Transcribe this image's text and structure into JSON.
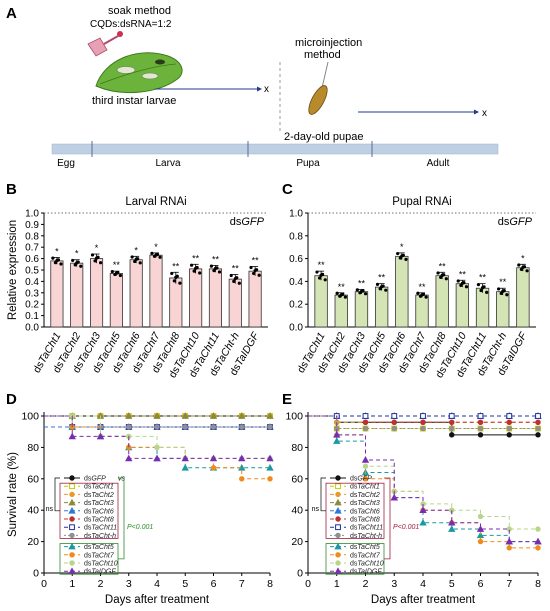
{
  "panels": {
    "A": {
      "label": "A",
      "soak_title": "soak method",
      "soak_ratio": "CQDs:dsRNA=1:2",
      "soak_subject": "third instar larvae",
      "micro_title_1": "microinjection",
      "micro_title_2": "method",
      "micro_subject": "2-day-old pupae",
      "x_mark": "x",
      "stages": [
        "Egg",
        "Larva",
        "Pupa",
        "Adult"
      ]
    },
    "B": {
      "label": "B"
    },
    "C": {
      "label": "C"
    },
    "D": {
      "label": "D"
    },
    "E": {
      "label": "E"
    }
  },
  "colors": {
    "larval_bar": "#f8d4d4",
    "pupal_bar": "#d4e4b4",
    "timeline": "#bfd0e4",
    "legend_red": "#a02040",
    "legend_green": "#2e8b2e"
  },
  "chart_data": [
    {
      "panel": "B",
      "type": "bar",
      "title": "Larval RNAi",
      "control_label_prefix": "ds",
      "control_label_italic": "GFP",
      "ylabel": "Relative expression",
      "ylim": [
        0,
        1.0
      ],
      "yticks": [
        "0.0",
        "0.1",
        "0.2",
        "0.3",
        "0.4",
        "0.5",
        "0.6",
        "0.7",
        "0.8",
        "0.9",
        "1.0"
      ],
      "categories": [
        "TaCht1",
        "TaCht2",
        "TaCht3",
        "TaCht5",
        "TaCht6",
        "TaCht7",
        "TaCht8",
        "TaCht10",
        "TaCht11",
        "TaCht-h",
        "TaIDGF"
      ],
      "category_prefix": "ds",
      "values": [
        0.58,
        0.56,
        0.6,
        0.47,
        0.59,
        0.63,
        0.43,
        0.51,
        0.51,
        0.42,
        0.49
      ],
      "errors": [
        0.03,
        0.03,
        0.04,
        0.02,
        0.03,
        0.02,
        0.05,
        0.04,
        0.03,
        0.04,
        0.04
      ],
      "significance": [
        "*",
        "*",
        "*",
        "**",
        "*",
        "*",
        "**",
        "**",
        "**",
        "**",
        "**"
      ],
      "reference_line": 1.0
    },
    {
      "panel": "C",
      "type": "bar",
      "title": "Pupal RNAi",
      "control_label_prefix": "ds",
      "control_label_italic": "GFP",
      "ylim": [
        0,
        1.0
      ],
      "yticks": [
        "0.0",
        "0.2",
        "0.4",
        "0.6",
        "0.8",
        "1.0"
      ],
      "categories": [
        "TaCht1",
        "TaCht2",
        "TaCht3",
        "TaCht5",
        "TaCht6",
        "TaCht7",
        "TaCht8",
        "TaCht10",
        "TaCht11",
        "TaCht-h",
        "TaIDGF"
      ],
      "category_prefix": "ds",
      "values": [
        0.45,
        0.28,
        0.31,
        0.35,
        0.62,
        0.28,
        0.45,
        0.38,
        0.34,
        0.31,
        0.52
      ],
      "errors": [
        0.04,
        0.02,
        0.02,
        0.03,
        0.03,
        0.02,
        0.03,
        0.03,
        0.04,
        0.03,
        0.03
      ],
      "significance": [
        "**",
        "**",
        "**",
        "**",
        "*",
        "**",
        "**",
        "**",
        "**",
        "**",
        "*"
      ],
      "reference_line": 1.0
    },
    {
      "panel": "D",
      "type": "line",
      "ylabel": "Survival rate (%)",
      "xlabel": "Days after treatment",
      "xlim": [
        0,
        8
      ],
      "ylim": [
        0,
        100
      ],
      "xticks": [
        "0",
        "1",
        "2",
        "3",
        "4",
        "5",
        "6",
        "7",
        "8"
      ],
      "yticks": [
        "0",
        "20",
        "40",
        "60",
        "80",
        "100"
      ],
      "legend_vs": "vs",
      "legend_ns": "ns",
      "legend_p": "P<0.001",
      "series": [
        {
          "name": "dsGFP",
          "color": "#111111",
          "marker": "circle",
          "dash": "",
          "x": [
            0,
            1,
            2,
            3,
            4,
            5,
            6,
            7,
            8
          ],
          "values": [
            100,
            100,
            100,
            100,
            100,
            100,
            100,
            100,
            100
          ],
          "group": "top"
        },
        {
          "name": "dsTaCht1",
          "color": "#c8c800",
          "marker": "square",
          "dash": "4,3",
          "x": [
            0,
            1,
            2,
            3,
            4,
            5,
            6,
            7,
            8
          ],
          "values": [
            100,
            100,
            100,
            100,
            100,
            100,
            100,
            100,
            100
          ],
          "group": "ns"
        },
        {
          "name": "dsTaCht2",
          "color": "#e89a2c",
          "marker": "circle",
          "dash": "4,3",
          "x": [
            0,
            1,
            2,
            3,
            4,
            5,
            6,
            7,
            8
          ],
          "values": [
            100,
            100,
            100,
            100,
            100,
            100,
            100,
            100,
            100
          ],
          "group": "ns"
        },
        {
          "name": "dsTaCht3",
          "color": "#8a8a3a",
          "marker": "triangle",
          "dash": "4,3",
          "x": [
            0,
            1,
            2,
            3,
            4,
            5,
            6,
            7,
            8
          ],
          "values": [
            100,
            100,
            100,
            100,
            100,
            100,
            100,
            100,
            100
          ],
          "group": "ns"
        },
        {
          "name": "dsTaCht6",
          "color": "#2c7ad6",
          "marker": "triangle",
          "dash": "4,3",
          "x": [
            0,
            1,
            2,
            3,
            4,
            5,
            6,
            7,
            8
          ],
          "values": [
            93,
            93,
            93,
            93,
            93,
            93,
            93,
            93,
            93
          ],
          "group": "ns"
        },
        {
          "name": "dsTaCht8",
          "color": "#c03030",
          "marker": "circle",
          "dash": "4,3",
          "x": [
            0,
            1,
            2,
            3,
            4,
            5,
            6,
            7,
            8
          ],
          "values": [
            100,
            93,
            93,
            93,
            93,
            93,
            93,
            93,
            93
          ],
          "group": "ns"
        },
        {
          "name": "dsTaCht11",
          "color": "#2030a0",
          "marker": "square",
          "dash": "4,3",
          "x": [
            0,
            1,
            2,
            3,
            4,
            5,
            6,
            7,
            8
          ],
          "values": [
            100,
            93,
            93,
            93,
            93,
            93,
            93,
            93,
            93
          ],
          "group": "ns"
        },
        {
          "name": "dsTaCht-h",
          "color": "#909090",
          "marker": "circle",
          "dash": "2,2",
          "x": [
            0,
            1,
            2,
            3,
            4,
            5,
            6,
            7,
            8
          ],
          "values": [
            100,
            93,
            93,
            93,
            93,
            93,
            93,
            93,
            93
          ],
          "group": "ns"
        },
        {
          "name": "dsTaCht5",
          "color": "#1a9aa0",
          "marker": "triangle",
          "dash": "4,3",
          "x": [
            0,
            1,
            2,
            3,
            4,
            5,
            6,
            7,
            8
          ],
          "values": [
            100,
            93,
            87,
            80,
            73,
            67,
            67,
            67,
            67
          ],
          "group": "sig"
        },
        {
          "name": "dsTaCht7",
          "color": "#f08a1c",
          "marker": "circle",
          "dash": "4,3",
          "x": [
            0,
            1,
            2,
            3,
            4,
            5,
            6,
            7,
            8
          ],
          "values": [
            100,
            93,
            87,
            80,
            80,
            73,
            67,
            60,
            60
          ],
          "group": "sig"
        },
        {
          "name": "dsTaCht10",
          "color": "#b8d68a",
          "marker": "circle",
          "dash": "4,3",
          "x": [
            0,
            1,
            2,
            3,
            4,
            5,
            6,
            7,
            8
          ],
          "values": [
            100,
            100,
            87,
            87,
            80,
            73,
            73,
            73,
            73
          ],
          "group": "sig"
        },
        {
          "name": "dsTaIDGF",
          "color": "#7a2cb0",
          "marker": "triangle",
          "dash": "4,3",
          "x": [
            0,
            1,
            2,
            3,
            4,
            5,
            6,
            7,
            8
          ],
          "values": [
            100,
            87,
            87,
            73,
            73,
            73,
            73,
            73,
            73
          ],
          "group": "sig"
        }
      ]
    },
    {
      "panel": "E",
      "type": "line",
      "xlabel": "Days after treatment",
      "xlim": [
        0,
        8
      ],
      "ylim": [
        0,
        100
      ],
      "xticks": [
        "0",
        "1",
        "2",
        "3",
        "4",
        "5",
        "6",
        "7",
        "8"
      ],
      "yticks": [
        "0",
        "20",
        "40",
        "60",
        "80",
        "100"
      ],
      "legend_ns": "ns",
      "legend_p": "P<0.001",
      "series": [
        {
          "name": "dsGFP",
          "color": "#111111",
          "marker": "circle",
          "dash": "",
          "x": [
            0,
            1,
            2,
            3,
            4,
            5,
            6,
            7,
            8
          ],
          "values": [
            100,
            96,
            96,
            96,
            96,
            88,
            88,
            88,
            88
          ],
          "group": "top"
        },
        {
          "name": "dsTaCht1",
          "color": "#c8c800",
          "marker": "square",
          "dash": "4,3",
          "x": [
            0,
            1,
            2,
            3,
            4,
            5,
            6,
            7,
            8
          ],
          "values": [
            100,
            92,
            92,
            92,
            92,
            92,
            92,
            92,
            92
          ],
          "group": "ns"
        },
        {
          "name": "dsTaCht2",
          "color": "#e89a2c",
          "marker": "circle",
          "dash": "4,3",
          "x": [
            0,
            1,
            2,
            3,
            4,
            5,
            6,
            7,
            8
          ],
          "values": [
            100,
            96,
            96,
            96,
            96,
            96,
            96,
            96,
            96
          ],
          "group": "ns"
        },
        {
          "name": "dsTaCht3",
          "color": "#8a8a3a",
          "marker": "triangle",
          "dash": "4,3",
          "x": [
            0,
            1,
            2,
            3,
            4,
            5,
            6,
            7,
            8
          ],
          "values": [
            100,
            100,
            100,
            100,
            100,
            100,
            100,
            100,
            100
          ],
          "group": "ns"
        },
        {
          "name": "dsTaCht6",
          "color": "#2c7ad6",
          "marker": "triangle",
          "dash": "4,3",
          "x": [
            0,
            1,
            2,
            3,
            4,
            5,
            6,
            7,
            8
          ],
          "values": [
            100,
            100,
            100,
            100,
            100,
            100,
            100,
            100,
            100
          ],
          "group": "ns"
        },
        {
          "name": "dsTaCht8",
          "color": "#c03030",
          "marker": "circle",
          "dash": "4,3",
          "x": [
            0,
            1,
            2,
            3,
            4,
            5,
            6,
            7,
            8
          ],
          "values": [
            100,
            100,
            96,
            96,
            96,
            96,
            96,
            96,
            96
          ],
          "group": "ns"
        },
        {
          "name": "dsTaCht11",
          "color": "#2030a0",
          "marker": "square",
          "dash": "4,3",
          "x": [
            0,
            1,
            2,
            3,
            4,
            5,
            6,
            7,
            8
          ],
          "values": [
            100,
            100,
            100,
            100,
            100,
            100,
            100,
            100,
            100
          ],
          "group": "ns"
        },
        {
          "name": "dsTaCht-h",
          "color": "#909090",
          "marker": "circle",
          "dash": "2,2",
          "x": [
            0,
            1,
            2,
            3,
            4,
            5,
            6,
            7,
            8
          ],
          "values": [
            100,
            92,
            92,
            92,
            92,
            92,
            92,
            92,
            92
          ],
          "group": "ns"
        },
        {
          "name": "dsTaCht5",
          "color": "#1a9aa0",
          "marker": "triangle",
          "dash": "4,3",
          "x": [
            0,
            1,
            2,
            3,
            4,
            5,
            6,
            7,
            8
          ],
          "values": [
            100,
            84,
            64,
            48,
            32,
            28,
            24,
            20,
            20
          ],
          "group": "sig"
        },
        {
          "name": "dsTaCht7",
          "color": "#f08a1c",
          "marker": "circle",
          "dash": "4,3",
          "x": [
            0,
            1,
            2,
            3,
            4,
            5,
            6,
            7,
            8
          ],
          "values": [
            100,
            88,
            60,
            52,
            40,
            32,
            20,
            16,
            16
          ],
          "group": "sig"
        },
        {
          "name": "dsTaCht10",
          "color": "#b8d68a",
          "marker": "circle",
          "dash": "4,3",
          "x": [
            0,
            1,
            2,
            3,
            4,
            5,
            6,
            7,
            8
          ],
          "values": [
            100,
            88,
            68,
            52,
            44,
            40,
            36,
            28,
            28
          ],
          "group": "sig"
        },
        {
          "name": "dsTaIDGF",
          "color": "#7a2cb0",
          "marker": "triangle",
          "dash": "4,3",
          "x": [
            0,
            1,
            2,
            3,
            4,
            5,
            6,
            7,
            8
          ],
          "values": [
            100,
            88,
            72,
            48,
            40,
            32,
            28,
            20,
            20
          ],
          "group": "sig"
        }
      ]
    }
  ]
}
